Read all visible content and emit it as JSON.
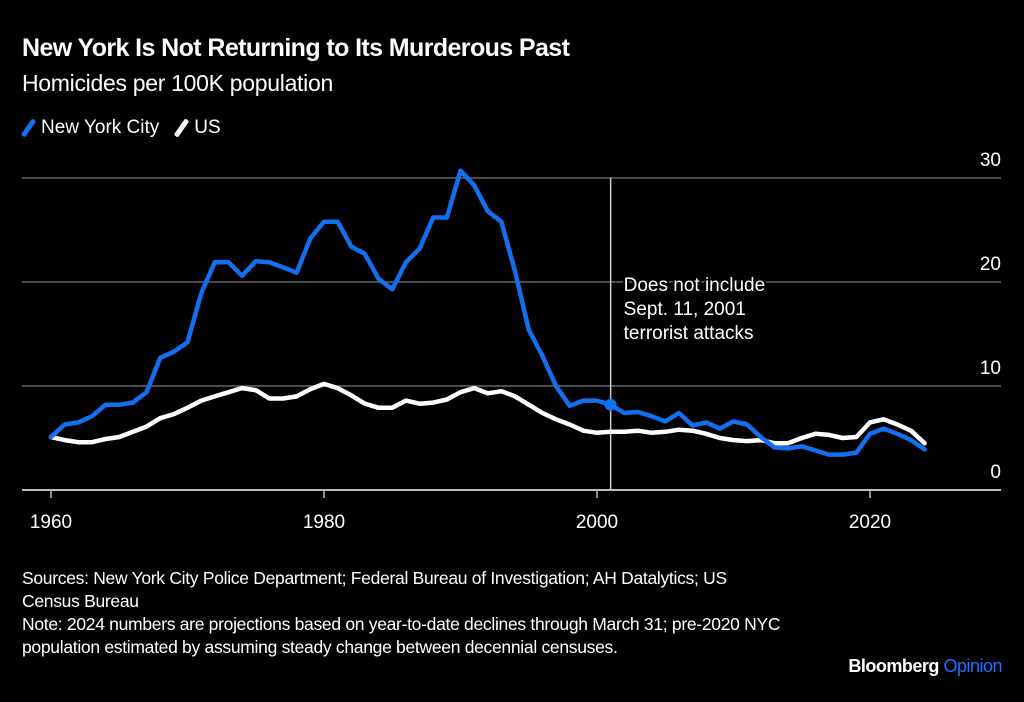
{
  "header": {
    "title": "New York Is Not Returning to Its Murderous Past",
    "subtitle": "Homicides per 100K population"
  },
  "footer": {
    "sources": "Sources: New York City Police Department; Federal Bureau of Investigation; AH Datalytics; US Census Bureau",
    "note": "Note: 2024 numbers are projections based on year-to-date declines through March 31; pre-2020 NYC population estimated by assuming steady change between decennial censuses."
  },
  "brand": {
    "name": "Bloomberg",
    "section": "Opinion"
  },
  "colors": {
    "nyc": "#1070f0",
    "us": "#ffffff",
    "background": "#000000",
    "grid": "#666666",
    "brand_accent": "#1a73ff"
  },
  "chart_data": {
    "type": "line",
    "title": "New York Is Not Returning to Its Murderous Past",
    "subtitle": "Homicides per 100K population",
    "xlabel": "",
    "ylabel": "",
    "xlim": [
      1958,
      2027
    ],
    "ylim": [
      0,
      30
    ],
    "x_ticks": [
      1960,
      1980,
      2000,
      2020
    ],
    "y_ticks": [
      0,
      10,
      20,
      30
    ],
    "grid": "horizontal",
    "y_axis_side": "right",
    "legend_position": "top-left",
    "x": [
      1960,
      1961,
      1962,
      1963,
      1964,
      1965,
      1966,
      1967,
      1968,
      1969,
      1970,
      1971,
      1972,
      1973,
      1974,
      1975,
      1976,
      1977,
      1978,
      1979,
      1980,
      1981,
      1982,
      1983,
      1984,
      1985,
      1986,
      1987,
      1988,
      1989,
      1990,
      1991,
      1992,
      1993,
      1994,
      1995,
      1996,
      1997,
      1998,
      1999,
      2000,
      2001,
      2002,
      2003,
      2004,
      2005,
      2006,
      2007,
      2008,
      2009,
      2010,
      2011,
      2012,
      2013,
      2014,
      2015,
      2016,
      2017,
      2018,
      2019,
      2020,
      2021,
      2022,
      2023,
      2024
    ],
    "series": [
      {
        "name": "New York City",
        "color": "#1070f0",
        "values": [
          5.1,
          6.3,
          6.5,
          7.1,
          8.2,
          8.2,
          8.4,
          9.4,
          12.7,
          13.3,
          14.2,
          18.9,
          21.9,
          21.9,
          20.6,
          22.0,
          21.9,
          21.4,
          20.9,
          24.2,
          25.8,
          25.8,
          23.4,
          22.7,
          20.3,
          19.3,
          21.9,
          23.2,
          26.2,
          26.2,
          30.7,
          29.3,
          26.8,
          25.8,
          21.0,
          15.4,
          12.9,
          10.0,
          8.1,
          8.6,
          8.6,
          8.2,
          7.4,
          7.5,
          7.1,
          6.6,
          7.4,
          6.2,
          6.5,
          5.9,
          6.6,
          6.3,
          5.1,
          4.1,
          4.0,
          4.2,
          3.8,
          3.4,
          3.4,
          3.6,
          5.4,
          5.9,
          5.4,
          4.8,
          3.9
        ]
      },
      {
        "name": "US",
        "color": "#ffffff",
        "values": [
          5.1,
          4.8,
          4.6,
          4.6,
          4.9,
          5.1,
          5.6,
          6.1,
          6.9,
          7.3,
          7.9,
          8.6,
          9.0,
          9.4,
          9.8,
          9.6,
          8.8,
          8.8,
          9.0,
          9.7,
          10.2,
          9.8,
          9.1,
          8.3,
          7.9,
          7.9,
          8.6,
          8.3,
          8.4,
          8.7,
          9.4,
          9.8,
          9.3,
          9.5,
          9.0,
          8.2,
          7.4,
          6.8,
          6.3,
          5.7,
          5.5,
          5.6,
          5.6,
          5.7,
          5.5,
          5.6,
          5.8,
          5.7,
          5.4,
          5.0,
          4.8,
          4.7,
          4.8,
          4.5,
          4.5,
          5.0,
          5.4,
          5.3,
          5.0,
          5.1,
          6.5,
          6.8,
          6.3,
          5.7,
          4.5
        ]
      }
    ],
    "annotations": [
      {
        "x": 2001,
        "type": "vline-with-marker",
        "series": "New York City",
        "text_lines": [
          "Does not include",
          "Sept. 11, 2001",
          "terrorist attacks"
        ]
      }
    ]
  }
}
